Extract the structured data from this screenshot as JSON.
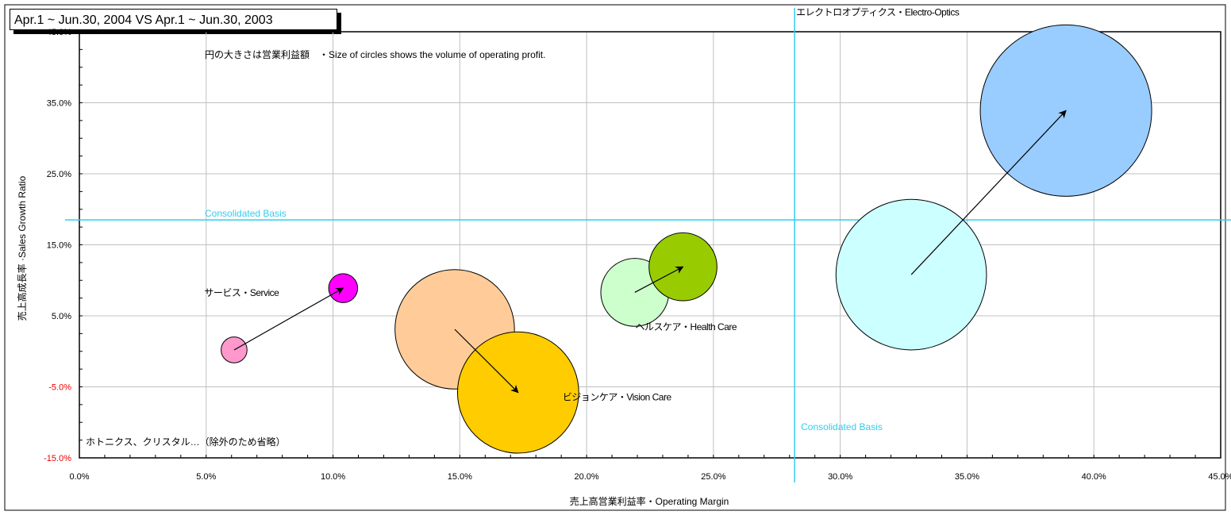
{
  "chart_data": {
    "type": "bubble",
    "title": "Apr.1 ~ Jun.30, 2004 VS Apr.1 ~ Jun.30, 2003",
    "note": "円の大きさは営業利益額　・Size of circles shows the volume of operating profit.",
    "footnote": "ホトニクス、クリスタル…（除外のため省略）",
    "xlabel": "売上高営業利益率・Operating Margin",
    "ylabel": "売上高成長率 ·Sales Growth Ratio",
    "xlim": [
      0,
      45
    ],
    "ylim": [
      -15,
      45
    ],
    "x_ticks": [
      "0.0%",
      "5.0%",
      "10.0%",
      "15.0%",
      "20.0%",
      "25.0%",
      "30.0%",
      "35.0%",
      "40.0%",
      "45.0%"
    ],
    "y_ticks": [
      "-15.0%",
      "-5.0%",
      "5.0%",
      "15.0%",
      "25.0%",
      "35.0%",
      "45.0%"
    ],
    "grid": true,
    "reference_lines": {
      "horizontal": {
        "value": 18.5,
        "label": "Consolidated Basis"
      },
      "vertical": {
        "value": 28.2,
        "label": "Consolidated Basis"
      }
    },
    "series": [
      {
        "label": "エレクトロオプティクス・Electro-Optics",
        "from": {
          "x": 32.8,
          "y": 10.8,
          "size": 2.7
        },
        "to": {
          "x": 38.9,
          "y": 33.9,
          "size": 3.5
        },
        "color_from": "#ccffff",
        "color_to": "#99ccff"
      },
      {
        "label": "ヘルスケア・Health Care",
        "from": {
          "x": 21.9,
          "y": 8.3,
          "size": 0.55
        },
        "to": {
          "x": 23.8,
          "y": 11.9,
          "size": 0.55
        },
        "color_from": "#ccffcc",
        "color_to": "#99cc00"
      },
      {
        "label": "ビジョンケア・Vision Care",
        "from": {
          "x": 14.8,
          "y": 3.1,
          "size": 1.7
        },
        "to": {
          "x": 17.3,
          "y": -5.8,
          "size": 1.75
        },
        "color_from": "#ffcc99",
        "color_to": "#ffcc00"
      },
      {
        "label": "サービス・Service",
        "from": {
          "x": 6.1,
          "y": 0.2,
          "size": 0.08
        },
        "to": {
          "x": 10.4,
          "y": 8.9,
          "size": 0.1
        },
        "color_from": "#ff99cc",
        "color_to": "#ff00ff"
      }
    ]
  }
}
